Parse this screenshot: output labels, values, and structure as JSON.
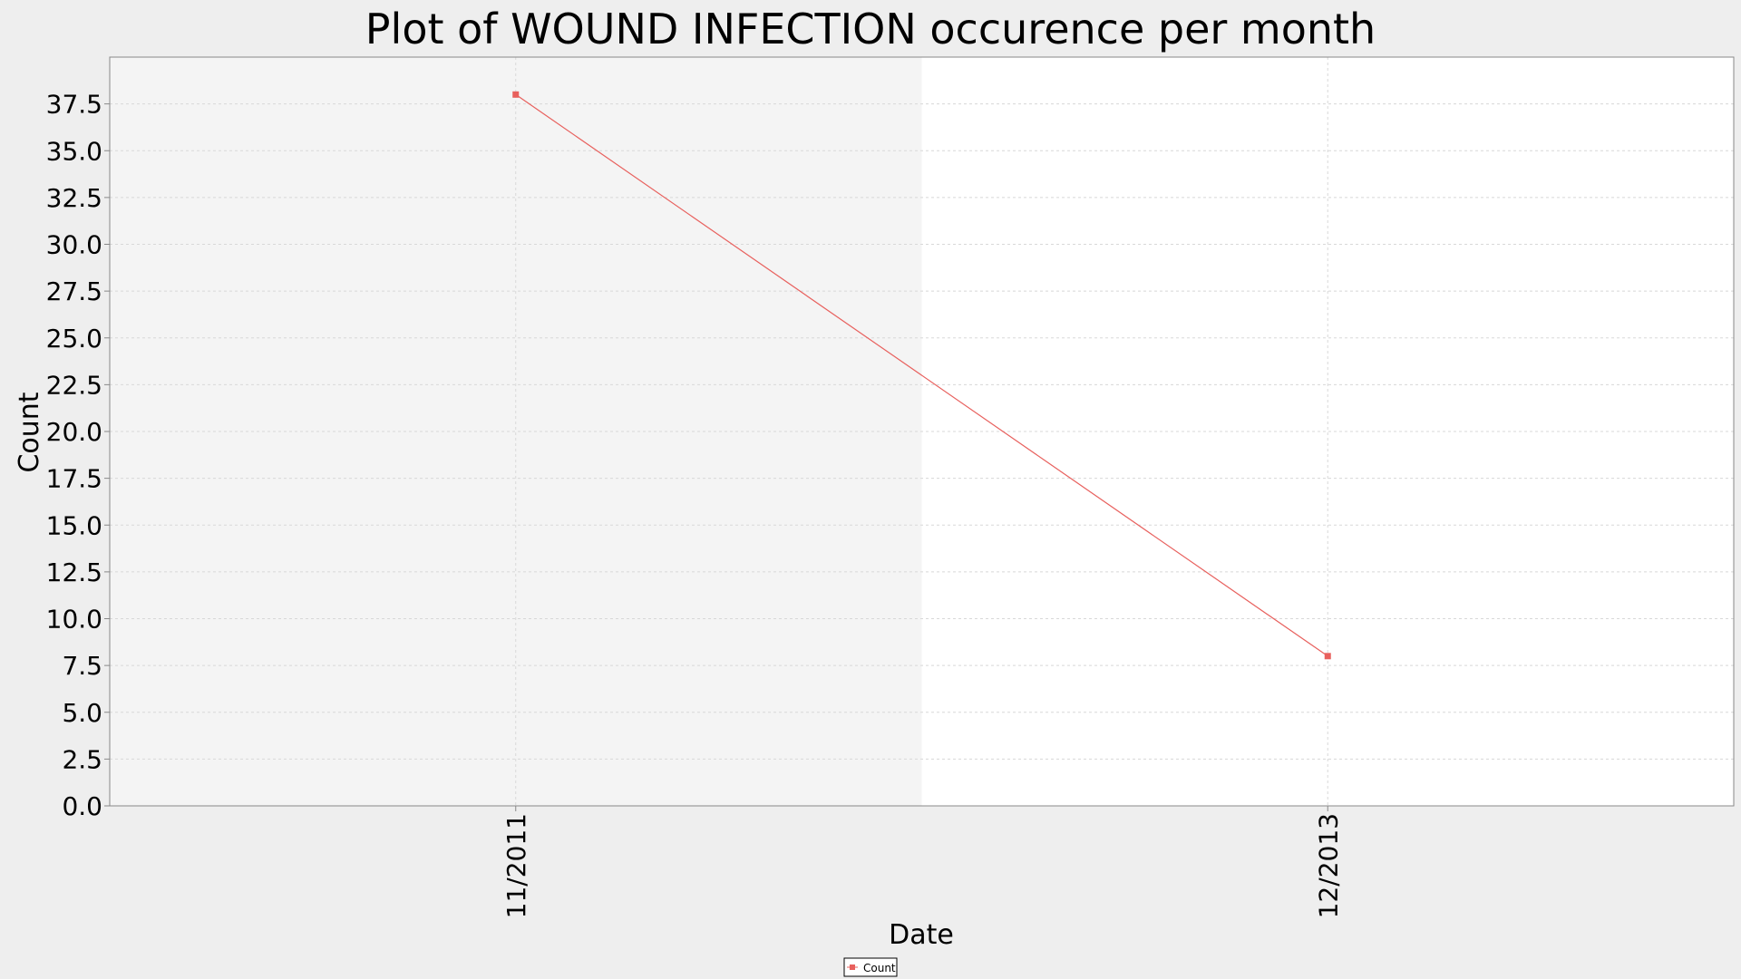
{
  "chart_data": {
    "type": "line",
    "title": "Plot of WOUND INFECTION occurence per month",
    "xlabel": "Date",
    "ylabel": "Count",
    "categories": [
      "11/2011",
      "12/2013"
    ],
    "series": [
      {
        "name": "Count",
        "values": [
          38,
          8
        ],
        "color": "#e8605d"
      }
    ],
    "ylim": [
      0,
      40
    ],
    "yticks": [
      "0.0",
      "2.5",
      "5.0",
      "7.5",
      "10.0",
      "12.5",
      "15.0",
      "17.5",
      "20.0",
      "22.5",
      "25.0",
      "27.5",
      "30.0",
      "32.5",
      "35.0",
      "37.5"
    ],
    "grid": true,
    "legend": "bottom-center",
    "colors": {
      "page_background": "#eeeeee",
      "plot_band_shaded": "#f4f4f4",
      "plot_band_white": "#ffffff",
      "gridline": "#d8d8d8",
      "series": "#e8605d"
    }
  }
}
